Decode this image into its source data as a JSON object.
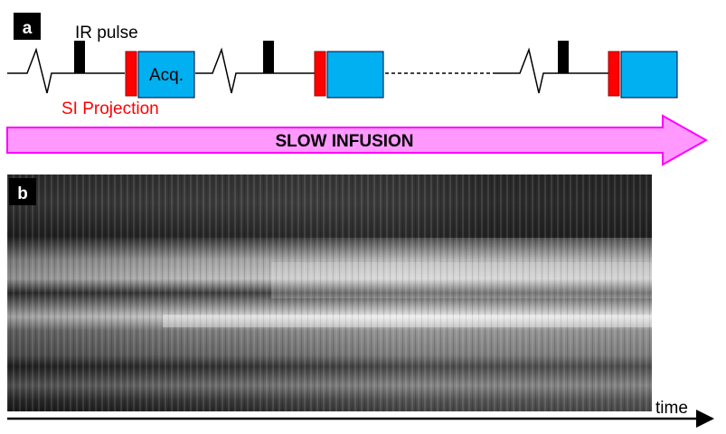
{
  "panel_a": {
    "label": "a",
    "ir_pulse_label": "IR pulse",
    "acq_label": "Acq.",
    "si_projection_label": "SI Projection",
    "infusion_label": "SLOW INFUSION",
    "colors": {
      "ir_pulse": "#000000",
      "si_projection": "#ff0000",
      "acquisition": "#00b0f0",
      "infusion_arrow_fill": "#ff99ff",
      "infusion_arrow_stroke": "#ff00ff",
      "si_projection_text": "#ff0000"
    }
  },
  "panel_b": {
    "label": "b",
    "time_axis_label": "time"
  }
}
